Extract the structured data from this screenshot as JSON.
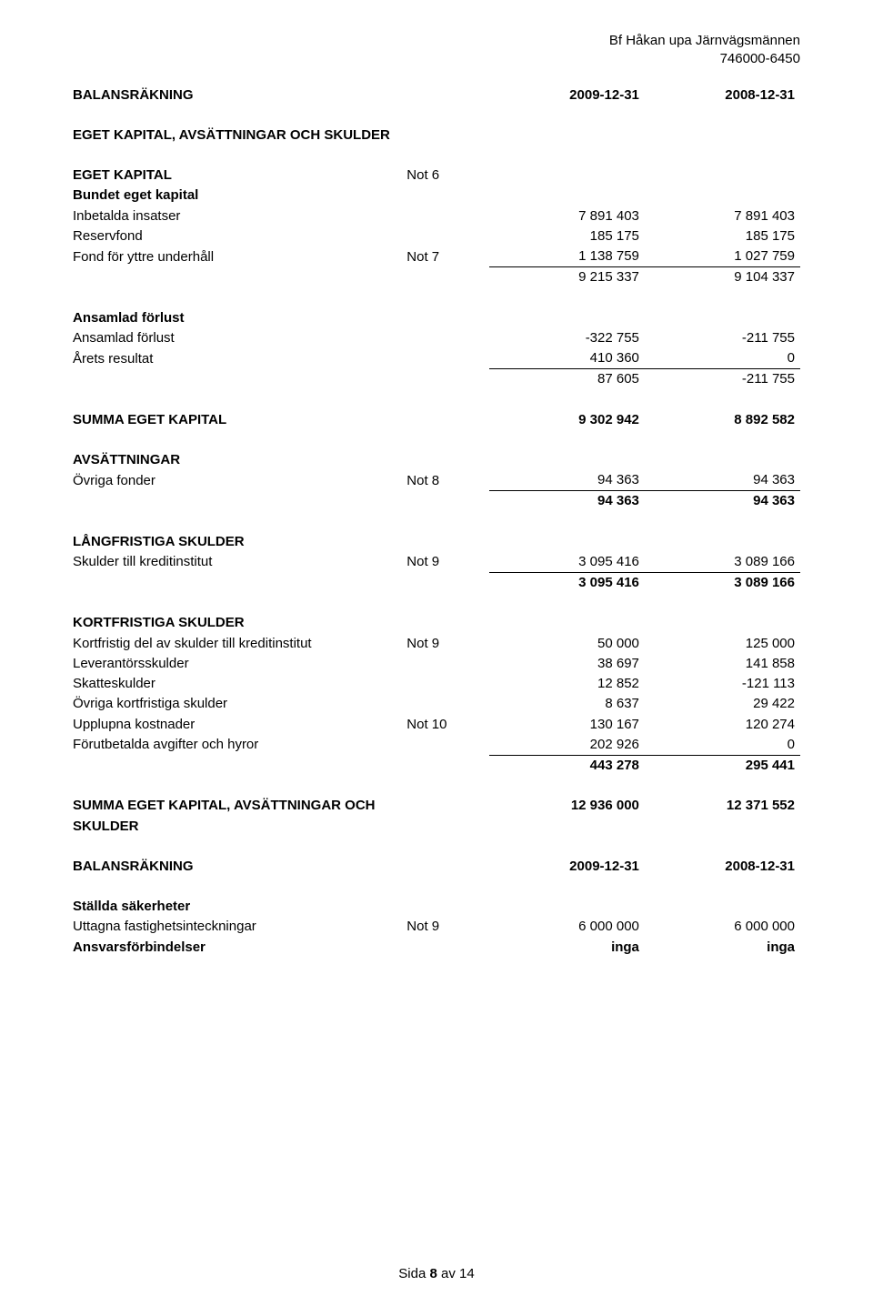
{
  "header": {
    "company": "Bf Håkan upa Järnvägsmännen",
    "orgnr": "746000-6450"
  },
  "titles": {
    "balansrakning": "BALANSRÄKNING",
    "section_title": "EGET KAPITAL, AVSÄTTNINGAR OCH SKULDER",
    "eget_kapital": "EGET KAPITAL",
    "bundet_eget_kapital": "Bundet eget kapital",
    "ansamlad_forlust_title": "Ansamlad förlust",
    "summa_eget_kapital": "SUMMA EGET KAPITAL",
    "avsattningar": "AVSÄTTNINGAR",
    "langfristiga": "LÅNGFRISTIGA SKULDER",
    "kortfristiga": "KORTFRISTIGA SKULDER",
    "summa_total_l1": "SUMMA EGET KAPITAL, AVSÄTTNINGAR OCH",
    "summa_total_l2": "SKULDER",
    "stallda_sakerheter": "Ställda säkerheter"
  },
  "dates": {
    "col1": "2009-12-31",
    "col2": "2008-12-31"
  },
  "notes": {
    "not6": "Not 6",
    "not7": "Not 7",
    "not8": "Not 8",
    "not9": "Not 9",
    "not10": "Not 10"
  },
  "rows": {
    "inbetalda_insatser": {
      "label": "Inbetalda insatser",
      "v1": "7 891 403",
      "v2": "7 891 403"
    },
    "reservfond": {
      "label": "Reservfond",
      "v1": "185 175",
      "v2": "185 175"
    },
    "fond_yttre": {
      "label": "Fond för yttre underhåll",
      "v1": "1 138 759",
      "v2": "1 027 759"
    },
    "bundet_sum": {
      "v1": "9 215 337",
      "v2": "9 104 337"
    },
    "ansamlad_forlust": {
      "label": "Ansamlad förlust",
      "v1": "-322 755",
      "v2": "-211 755"
    },
    "arets_resultat": {
      "label": "Årets resultat",
      "v1": "410 360",
      "v2": "0"
    },
    "ansamlad_sum": {
      "v1": "87 605",
      "v2": "-211 755"
    },
    "summa_eget_kapital": {
      "v1": "9 302 942",
      "v2": "8 892 582"
    },
    "ovriga_fonder": {
      "label": "Övriga fonder",
      "v1": "94 363",
      "v2": "94 363"
    },
    "avsattningar_sum": {
      "v1": "94 363",
      "v2": "94 363"
    },
    "skulder_kredit": {
      "label": "Skulder till kreditinstitut",
      "v1": "3 095 416",
      "v2": "3 089 166"
    },
    "langfristiga_sum": {
      "v1": "3 095 416",
      "v2": "3 089 166"
    },
    "kortfristig_del": {
      "label": "Kortfristig del av skulder till kreditinstitut",
      "v1": "50 000",
      "v2": "125 000"
    },
    "leverantorsskulder": {
      "label": "Leverantörsskulder",
      "v1": "38 697",
      "v2": "141 858"
    },
    "skatteskulder": {
      "label": "Skatteskulder",
      "v1": "12 852",
      "v2": "-121 113"
    },
    "ovriga_kortfristiga": {
      "label": "Övriga kortfristiga skulder",
      "v1": "8 637",
      "v2": "29 422"
    },
    "upplupna": {
      "label": "Upplupna kostnader",
      "v1": "130 167",
      "v2": "120 274"
    },
    "forutbetalda": {
      "label": "Förutbetalda avgifter och hyror",
      "v1": "202 926",
      "v2": "0"
    },
    "kortfristiga_sum": {
      "v1": "443 278",
      "v2": "295 441"
    },
    "summa_total": {
      "v1": "12 936 000",
      "v2": "12 371 552"
    },
    "uttagna_fastighets": {
      "label": "Uttagna fastighetsinteckningar",
      "v1": "6 000 000",
      "v2": "6 000 000"
    },
    "ansvarsforbindelser": {
      "label": "Ansvarsförbindelser",
      "v1": "inga",
      "v2": "inga"
    }
  },
  "footer": {
    "prefix": "Sida ",
    "page": "8",
    "suffix": " av 14"
  }
}
